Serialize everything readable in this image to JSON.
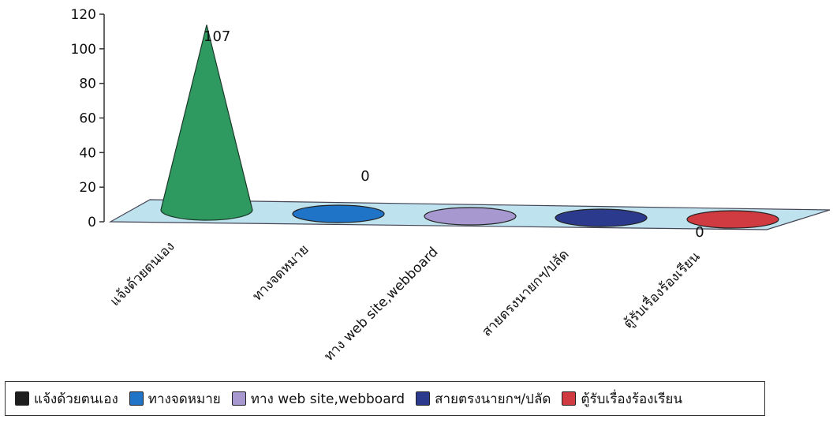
{
  "chart_data": {
    "type": "bar",
    "style": "3d-cone",
    "categories": [
      "แจ้งด้วยตนเอง",
      "ทางจดหมาย",
      "ทาง web site,webboard",
      "สายตรงนายกฯ/ปลัด",
      "ตู้รับเรื่องร้องเรียน"
    ],
    "values": [
      107,
      0,
      0,
      0,
      0
    ],
    "data_labels": [
      "107",
      "0",
      "",
      "",
      "0"
    ],
    "y_ticks": [
      "0",
      "20",
      "40",
      "60",
      "80",
      "100",
      "120"
    ],
    "ylim": [
      0,
      120
    ],
    "colors": [
      "#2e9a60",
      "#1f74c8",
      "#a898d0",
      "#2c3a8e",
      "#cf3b40"
    ],
    "floor_color": "#bfe3ee",
    "legend_position": "bottom",
    "legend_swatch_colors": [
      "#1e1e1e",
      "#1f74c8",
      "#a898d0",
      "#2c3a8e",
      "#cf3b40"
    ],
    "title": "",
    "xlabel": "",
    "ylabel": ""
  }
}
